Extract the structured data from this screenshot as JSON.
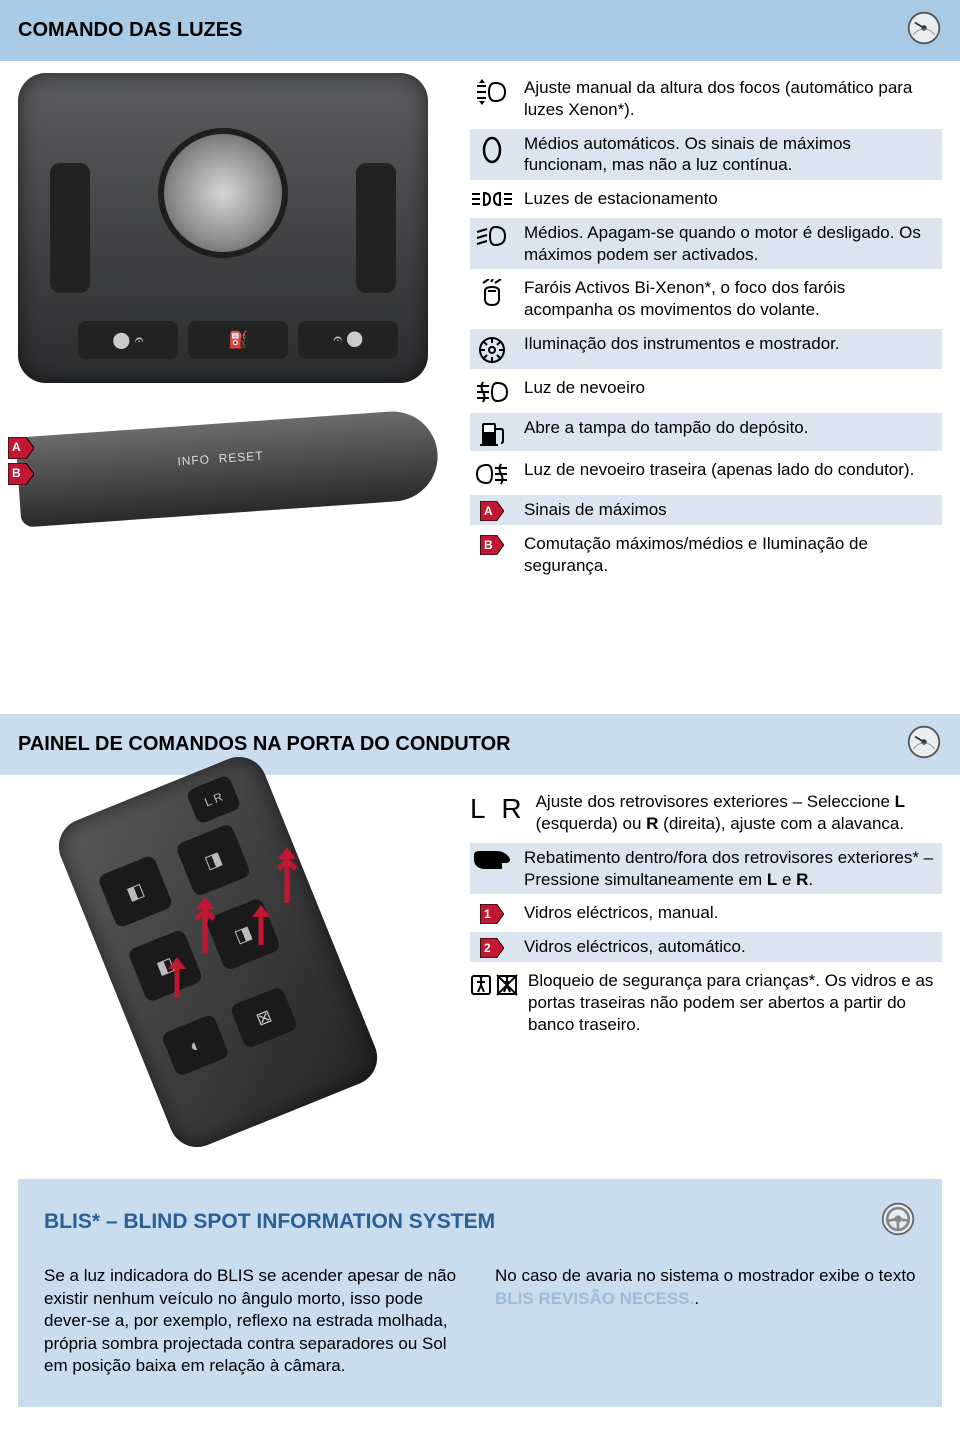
{
  "colors": {
    "header_bg_1": "#aacbe5",
    "header_bg_2": "#c9ddee",
    "header_bg_3": "#c9ddee",
    "stripe_bg": "rgba(150,180,210,0.35)",
    "arrow_fill": "#c01733",
    "blis_title_color": "#2a5f97",
    "blis_bg": "#c9ddee",
    "highlight_gray": "#9fbad2",
    "text": "#000000",
    "page_bg": "#ffffff"
  },
  "section1": {
    "title": "COMANDO DAS LUZES",
    "items": [
      {
        "icon": "headlight-adjust",
        "text": "Ajuste manual da altura dos focos (automático para luzes Xenon*).",
        "striped": false
      },
      {
        "icon": "zero-symbol",
        "text": "Médios automáticos. Os sinais de máximos funcionam, mas não a luz contínua.",
        "striped": true
      },
      {
        "icon": "parking-light",
        "text": "Luzes de estacionamento",
        "striped": false
      },
      {
        "icon": "low-beam",
        "text": "Médios. Apagam-se quando o motor é desligado. Os máximos podem ser activados.",
        "striped": true
      },
      {
        "icon": "bixenon",
        "text": "Faróis Activos Bi-Xenon*, o foco dos faróis acompanha os movimentos do volante.",
        "striped": false
      },
      {
        "icon": "instrument-light",
        "text": "Iluminação dos instrumentos e mostrador.",
        "striped": true
      },
      {
        "icon": "fog-front",
        "text": "Luz de nevoeiro",
        "striped": false
      },
      {
        "icon": "fuel-pump",
        "text": "Abre a tampa do tampão do depósito.",
        "striped": true
      },
      {
        "icon": "fog-rear",
        "text": "Luz de nevoeiro traseira (apenas lado do condutor).",
        "striped": false
      },
      {
        "icon": "arrow-A",
        "letter": "A",
        "text": "Sinais de máximos",
        "striped": true
      },
      {
        "icon": "arrow-B",
        "letter": "B",
        "text": "Comutação máximos/médios e Iluminação de segurança.",
        "striped": false
      }
    ],
    "stalk_labels": {
      "A": "A",
      "B": "B",
      "info": "INFO",
      "reset": "RESET"
    }
  },
  "section2": {
    "title": "PAINEL DE COMANDOS NA PORTA DO CONDUTOR",
    "items": [
      {
        "icon": "LR",
        "text_parts": [
          "Ajuste dos retrovisores exteriores – Seleccione ",
          "L",
          " (esquerda) ou ",
          "R",
          " (direita), ajuste com a alavanca."
        ],
        "striped": false
      },
      {
        "icon": "mirror-fold",
        "text_parts": [
          "Rebatimento dentro/fora dos retrovisores exteriores* – Pressione simultaneamente em ",
          "L",
          " e ",
          "R",
          "."
        ],
        "striped": true
      },
      {
        "icon": "arrow-1",
        "letter": "1",
        "text": "Vidros eléctricos, manual.",
        "striped": false
      },
      {
        "icon": "arrow-2",
        "letter": "2",
        "text": "Vidros eléctricos, automático.",
        "striped": true
      },
      {
        "icon": "child-lock",
        "text": "Bloqueio de segurança para crianças*. Os vidros e as portas traseiras não podem ser abertos a partir do banco traseiro.",
        "striped": false
      }
    ]
  },
  "section3": {
    "title": "BLIS* – BLIND SPOT INFORMATION SYSTEM",
    "col1": "Se a luz indicadora do BLIS se acender apesar de não existir nenhum veículo no ângulo morto, isso pode dever-se a, por exemplo, reflexo na estrada molhada, própria sombra projectada contra separadores ou Sol em posição baixa em relação à câmara.",
    "col2_pre": "No caso de avaria no sistema o mostrador exibe o texto ",
    "col2_highlight": "BLIS REVISÃO NECESS.",
    "col2_post": "."
  }
}
